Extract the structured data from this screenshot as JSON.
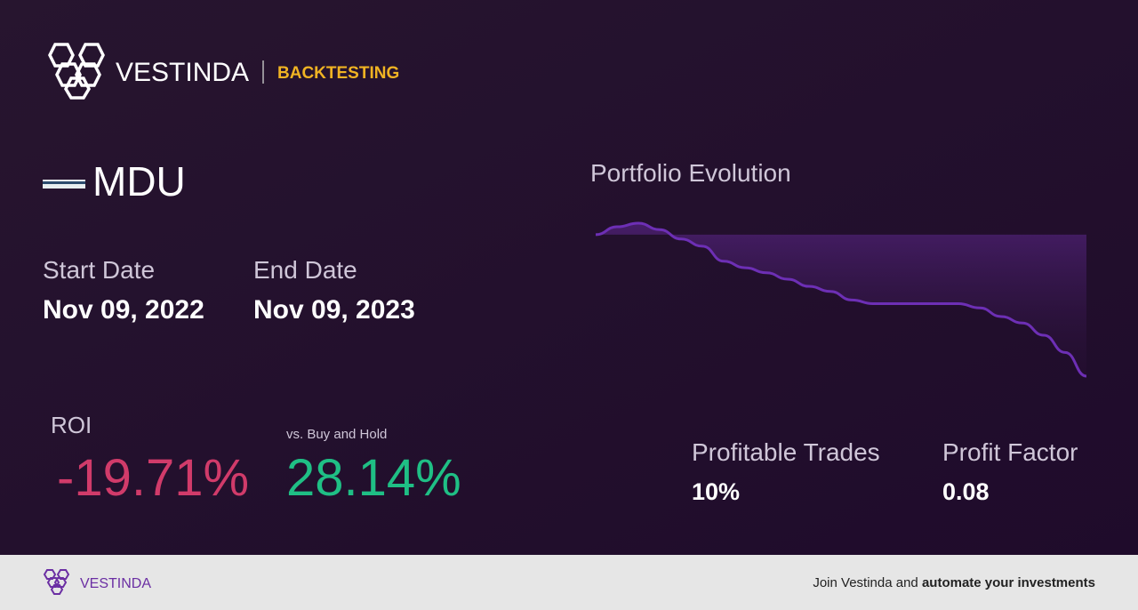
{
  "header": {
    "brand": "VESTINDA",
    "section": "BACKTESTING"
  },
  "ticker": "MDU",
  "start_date": {
    "label": "Start Date",
    "value": "Nov 09, 2022"
  },
  "end_date": {
    "label": "End Date",
    "value": "Nov 09, 2023"
  },
  "roi": {
    "label": "ROI",
    "value": "-19.71%"
  },
  "buy_and_hold": {
    "label": "vs. Buy and Hold",
    "value": "28.14%"
  },
  "chart": {
    "title": "Portfolio Evolution",
    "color": "#6d2fb5",
    "values": [
      100,
      101.1,
      101.6,
      100.7,
      99.4,
      98.4,
      96.3,
      95.4,
      94.7,
      93.8,
      92.8,
      92.1,
      90.9,
      90.4,
      90.4,
      90.4,
      90.4,
      90.4,
      89.8,
      88.6,
      87.7,
      86.0,
      83.6,
      80.3
    ]
  },
  "profitable_trades": {
    "label": "Profitable Trades",
    "value": "10%"
  },
  "profit_factor": {
    "label": "Profit Factor",
    "value": "0.08"
  },
  "footer": {
    "brand": "VESTINDA",
    "cta_prefix": "Join Vestinda and",
    "cta_bold": "automate your investments"
  }
}
